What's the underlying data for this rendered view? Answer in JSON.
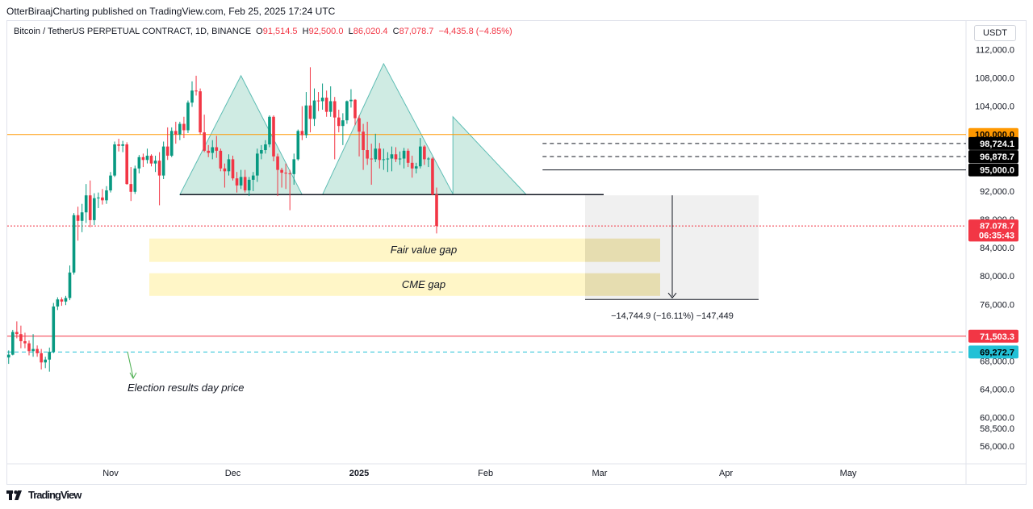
{
  "caption": "OtterBiraajCharting published on TradingView.com, Feb 25, 2025 17:24 UTC",
  "legend": {
    "symbol": "Bitcoin / TetherUS PERPETUAL CONTRACT, 1D, BINANCE",
    "o_label": "O",
    "o": "91,514.5",
    "h_label": "H",
    "h": "92,500.0",
    "l_label": "L",
    "l": "86,020.4",
    "c_label": "C",
    "c": "87,078.7",
    "change": "−4,435.8 (−4.85%)"
  },
  "currency": "USDT",
  "footer": {
    "brand": "TradingView"
  },
  "colors": {
    "up": "#089981",
    "down": "#f23645",
    "accent": "#131722"
  },
  "chart_data": {
    "type": "candlestick",
    "title": "Bitcoin / TetherUS PERPETUAL CONTRACT, 1D, BINANCE",
    "yaxis_ticks": [
      "112,000.0",
      "108,000.0",
      "104,000.0",
      "92,000.0",
      "88,000.0",
      "84,000.0",
      "80,000.0",
      "76,000.0",
      "68,000.0",
      "64,000.0",
      "60,000.0",
      "58,500.0",
      "56,000.0"
    ],
    "xaxis_ticks": [
      {
        "label": "Nov",
        "day": 0,
        "bold": false
      },
      {
        "label": "Dec",
        "day": 30,
        "bold": false
      },
      {
        "label": "2025",
        "day": 61,
        "bold": true
      },
      {
        "label": "Feb",
        "day": 92,
        "bold": false
      },
      {
        "label": "Mar",
        "day": 120,
        "bold": false
      },
      {
        "label": "Apr",
        "day": 151,
        "bold": false
      },
      {
        "label": "May",
        "day": 181,
        "bold": false
      }
    ],
    "price_labels": [
      {
        "text": "100,000.0",
        "price": 100000,
        "bg": "#ff9800",
        "fg": "#000000"
      },
      {
        "text": "98,724.1",
        "price": 98724.1,
        "bg": "#000000",
        "fg": "#ffffff"
      },
      {
        "text": "96,878.7",
        "price": 96878.7,
        "bg": "#000000",
        "fg": "#ffffff"
      },
      {
        "text": "95,000.0",
        "price": 95000,
        "bg": "#000000",
        "fg": "#ffffff"
      },
      {
        "text": "87,078.7",
        "price": 87078.7,
        "bg": "#f23645",
        "fg": "#ffffff"
      },
      {
        "text": "06:35:43",
        "price": 85800,
        "bg": "#f23645",
        "fg": "#ffffff"
      },
      {
        "text": "71,503.3",
        "price": 71503.3,
        "bg": "#f23645",
        "fg": "#ffffff"
      },
      {
        "text": "69,272.7",
        "price": 69272.7,
        "bg": "#22c1d6",
        "fg": "#000000"
      }
    ],
    "levels": [
      {
        "price": 100000,
        "color": "#ff9800",
        "style": "solid"
      },
      {
        "price": 98724.1,
        "color": "#131722",
        "style": "dashed",
        "from_day": 106
      },
      {
        "price": 96878.7,
        "color": "#131722",
        "style": "dashed",
        "from_day": 106
      },
      {
        "price": 95000,
        "color": "#131722",
        "style": "solid",
        "from_day": 106
      },
      {
        "price": 87078.7,
        "color": "#f23645",
        "style": "dotted"
      },
      {
        "price": 71503.3,
        "color": "#f23645",
        "style": "solid"
      },
      {
        "price": 69272.7,
        "color": "#22c1d6",
        "style": "dashed"
      }
    ],
    "zones": [
      {
        "label": "Fair value gap",
        "top": 85300,
        "bottom": 82000
      },
      {
        "label": "CME gap",
        "top": 80400,
        "bottom": 77200
      }
    ],
    "measure": {
      "from": 91400,
      "to": 76700,
      "label": "−14,744.9 (−16.11%) −147,449"
    },
    "pattern": {
      "type": "head-and-shoulders",
      "neckline": 91500,
      "points": [
        {
          "day": 17,
          "price": 91500
        },
        {
          "day": 32,
          "price": 108300
        },
        {
          "day": 47,
          "price": 91500
        },
        {
          "day": 52,
          "price": 91500
        },
        {
          "day": 67,
          "price": 110000
        },
        {
          "day": 84,
          "price": 91600
        },
        {
          "day": 84,
          "price": 102500
        },
        {
          "day": 102,
          "price": 91500
        }
      ]
    },
    "annotation": {
      "text": "Election results day price",
      "day": 2,
      "price": 67000
    },
    "candles": [
      {
        "o": 68500,
        "h": 69500,
        "l": 67600,
        "c": 68900
      },
      {
        "o": 68900,
        "h": 72400,
        "l": 68800,
        "c": 72100
      },
      {
        "o": 72100,
        "h": 73600,
        "l": 71200,
        "c": 71800
      },
      {
        "o": 71800,
        "h": 73000,
        "l": 69800,
        "c": 70800
      },
      {
        "o": 70800,
        "h": 72000,
        "l": 69800,
        "c": 70500
      },
      {
        "o": 70500,
        "h": 70900,
        "l": 68800,
        "c": 69400
      },
      {
        "o": 69400,
        "h": 71800,
        "l": 68600,
        "c": 69700
      },
      {
        "o": 69700,
        "h": 70200,
        "l": 68600,
        "c": 69100
      },
      {
        "o": 69100,
        "h": 69700,
        "l": 66800,
        "c": 67800
      },
      {
        "o": 67800,
        "h": 68600,
        "l": 67000,
        "c": 68200
      },
      {
        "o": 68200,
        "h": 69900,
        "l": 66500,
        "c": 69300
      },
      {
        "o": 69300,
        "h": 76200,
        "l": 69100,
        "c": 75700
      },
      {
        "o": 75700,
        "h": 77000,
        "l": 75200,
        "c": 76700
      },
      {
        "o": 76700,
        "h": 77000,
        "l": 75800,
        "c": 76400
      },
      {
        "o": 76400,
        "h": 77200,
        "l": 75900,
        "c": 76900
      },
      {
        "o": 76900,
        "h": 81500,
        "l": 76600,
        "c": 80500
      },
      {
        "o": 80500,
        "h": 88900,
        "l": 80200,
        "c": 88600
      },
      {
        "o": 88600,
        "h": 89800,
        "l": 85000,
        "c": 87800
      },
      {
        "o": 87800,
        "h": 90200,
        "l": 86200,
        "c": 89000
      },
      {
        "o": 89000,
        "h": 93000,
        "l": 87500,
        "c": 91400
      },
      {
        "o": 91400,
        "h": 93500,
        "l": 86900,
        "c": 87900
      },
      {
        "o": 87900,
        "h": 91700,
        "l": 87200,
        "c": 91000
      },
      {
        "o": 91000,
        "h": 91800,
        "l": 89600,
        "c": 91100
      },
      {
        "o": 91100,
        "h": 92300,
        "l": 90100,
        "c": 90700
      },
      {
        "o": 90700,
        "h": 92700,
        "l": 90200,
        "c": 92100
      },
      {
        "o": 92100,
        "h": 94700,
        "l": 91800,
        "c": 94200
      },
      {
        "o": 94200,
        "h": 99000,
        "l": 94000,
        "c": 98600
      },
      {
        "o": 98600,
        "h": 99400,
        "l": 97600,
        "c": 98400
      },
      {
        "o": 98400,
        "h": 99100,
        "l": 97500,
        "c": 98600
      },
      {
        "o": 98600,
        "h": 98900,
        "l": 92900,
        "c": 93000
      },
      {
        "o": 93000,
        "h": 95400,
        "l": 90600,
        "c": 91900
      },
      {
        "o": 91900,
        "h": 95600,
        "l": 91600,
        "c": 95200
      },
      {
        "o": 95200,
        "h": 97100,
        "l": 94500,
        "c": 96800
      },
      {
        "o": 96800,
        "h": 97300,
        "l": 95400,
        "c": 96400
      },
      {
        "o": 96400,
        "h": 98000,
        "l": 95900,
        "c": 97000
      },
      {
        "o": 97000,
        "h": 97200,
        "l": 95500,
        "c": 95900
      },
      {
        "o": 95900,
        "h": 97000,
        "l": 94700,
        "c": 96300
      },
      {
        "o": 96300,
        "h": 97500,
        "l": 90000,
        "c": 94200
      },
      {
        "o": 94200,
        "h": 99000,
        "l": 93700,
        "c": 98300
      },
      {
        "o": 98300,
        "h": 101000,
        "l": 96400,
        "c": 97000
      },
      {
        "o": 97000,
        "h": 101000,
        "l": 96800,
        "c": 100500
      },
      {
        "o": 100500,
        "h": 101800,
        "l": 98700,
        "c": 100000
      },
      {
        "o": 100000,
        "h": 101800,
        "l": 99200,
        "c": 101500
      },
      {
        "o": 101500,
        "h": 102500,
        "l": 99500,
        "c": 100600
      },
      {
        "o": 100600,
        "h": 104800,
        "l": 100200,
        "c": 104500
      },
      {
        "o": 104500,
        "h": 107500,
        "l": 103900,
        "c": 106200
      },
      {
        "o": 106200,
        "h": 108300,
        "l": 105500,
        "c": 106100
      },
      {
        "o": 106100,
        "h": 106500,
        "l": 100000,
        "c": 100300
      },
      {
        "o": 100300,
        "h": 102800,
        "l": 97500,
        "c": 97700
      },
      {
        "o": 97700,
        "h": 98500,
        "l": 96800,
        "c": 97400
      },
      {
        "o": 97400,
        "h": 99200,
        "l": 96500,
        "c": 98200
      },
      {
        "o": 98200,
        "h": 99800,
        "l": 96700,
        "c": 97700
      },
      {
        "o": 97700,
        "h": 98000,
        "l": 94800,
        "c": 95200
      },
      {
        "o": 95200,
        "h": 95900,
        "l": 92500,
        "c": 94800
      },
      {
        "o": 94800,
        "h": 97200,
        "l": 94200,
        "c": 96500
      },
      {
        "o": 96500,
        "h": 97000,
        "l": 93500,
        "c": 93800
      },
      {
        "o": 93800,
        "h": 94700,
        "l": 91800,
        "c": 92800
      },
      {
        "o": 92800,
        "h": 95000,
        "l": 92300,
        "c": 94000
      },
      {
        "o": 94000,
        "h": 95000,
        "l": 91800,
        "c": 92100
      },
      {
        "o": 92100,
        "h": 94000,
        "l": 91300,
        "c": 93600
      },
      {
        "o": 93600,
        "h": 94700,
        "l": 92000,
        "c": 94200
      },
      {
        "o": 94200,
        "h": 98000,
        "l": 93300,
        "c": 97300
      },
      {
        "o": 97300,
        "h": 98500,
        "l": 96500,
        "c": 97800
      },
      {
        "o": 97800,
        "h": 99200,
        "l": 97300,
        "c": 98600
      },
      {
        "o": 98600,
        "h": 102700,
        "l": 98200,
        "c": 102500
      },
      {
        "o": 102500,
        "h": 102700,
        "l": 96200,
        "c": 96900
      },
      {
        "o": 96900,
        "h": 97300,
        "l": 91300,
        "c": 95000
      },
      {
        "o": 95000,
        "h": 95300,
        "l": 92500,
        "c": 94600
      },
      {
        "o": 94600,
        "h": 95900,
        "l": 92300,
        "c": 94500
      },
      {
        "o": 94500,
        "h": 95000,
        "l": 89300,
        "c": 94400
      },
      {
        "o": 94400,
        "h": 97300,
        "l": 92900,
        "c": 96500
      },
      {
        "o": 96500,
        "h": 100700,
        "l": 96300,
        "c": 100500
      },
      {
        "o": 100500,
        "h": 104000,
        "l": 99200,
        "c": 99900
      },
      {
        "o": 99900,
        "h": 106000,
        "l": 99500,
        "c": 104100
      },
      {
        "o": 104100,
        "h": 109500,
        "l": 100300,
        "c": 102200
      },
      {
        "o": 102200,
        "h": 106500,
        "l": 101200,
        "c": 104800
      },
      {
        "o": 104800,
        "h": 106000,
        "l": 103300,
        "c": 104700
      },
      {
        "o": 104700,
        "h": 107200,
        "l": 103500,
        "c": 105200
      },
      {
        "o": 105200,
        "h": 106200,
        "l": 102500,
        "c": 103200
      },
      {
        "o": 103200,
        "h": 106800,
        "l": 102500,
        "c": 104700
      },
      {
        "o": 104700,
        "h": 105300,
        "l": 96500,
        "c": 102400
      },
      {
        "o": 102400,
        "h": 103500,
        "l": 100300,
        "c": 101200
      },
      {
        "o": 101200,
        "h": 103000,
        "l": 98500,
        "c": 102000
      },
      {
        "o": 102000,
        "h": 104800,
        "l": 101500,
        "c": 104700
      },
      {
        "o": 104700,
        "h": 106400,
        "l": 103800,
        "c": 104900
      },
      {
        "o": 104900,
        "h": 105000,
        "l": 101300,
        "c": 102300
      },
      {
        "o": 102300,
        "h": 102700,
        "l": 96900,
        "c": 100400
      },
      {
        "o": 100400,
        "h": 101500,
        "l": 95000,
        "c": 97800
      },
      {
        "o": 97800,
        "h": 101800,
        "l": 95700,
        "c": 96600
      },
      {
        "o": 96600,
        "h": 98700,
        "l": 92900,
        "c": 96500
      },
      {
        "o": 96500,
        "h": 100100,
        "l": 96100,
        "c": 98000
      },
      {
        "o": 98000,
        "h": 98800,
        "l": 95200,
        "c": 96400
      },
      {
        "o": 96400,
        "h": 98000,
        "l": 95000,
        "c": 96500
      },
      {
        "o": 96500,
        "h": 97500,
        "l": 94700,
        "c": 96600
      },
      {
        "o": 96600,
        "h": 98300,
        "l": 94800,
        "c": 97200
      },
      {
        "o": 97200,
        "h": 98200,
        "l": 96100,
        "c": 96500
      },
      {
        "o": 96500,
        "h": 97600,
        "l": 95700,
        "c": 96600
      },
      {
        "o": 96600,
        "h": 98100,
        "l": 95200,
        "c": 97700
      },
      {
        "o": 97700,
        "h": 98000,
        "l": 95400,
        "c": 96000
      },
      {
        "o": 96000,
        "h": 97000,
        "l": 93900,
        "c": 95200
      },
      {
        "o": 95200,
        "h": 96000,
        "l": 94500,
        "c": 95500
      },
      {
        "o": 95500,
        "h": 99500,
        "l": 95200,
        "c": 98300
      },
      {
        "o": 98300,
        "h": 98500,
        "l": 95700,
        "c": 96500
      },
      {
        "o": 96500,
        "h": 96800,
        "l": 95400,
        "c": 96600
      },
      {
        "o": 96600,
        "h": 96800,
        "l": 91400,
        "c": 91500
      },
      {
        "o": 91514.5,
        "h": 92500,
        "l": 86020.4,
        "c": 87078.7
      }
    ]
  }
}
